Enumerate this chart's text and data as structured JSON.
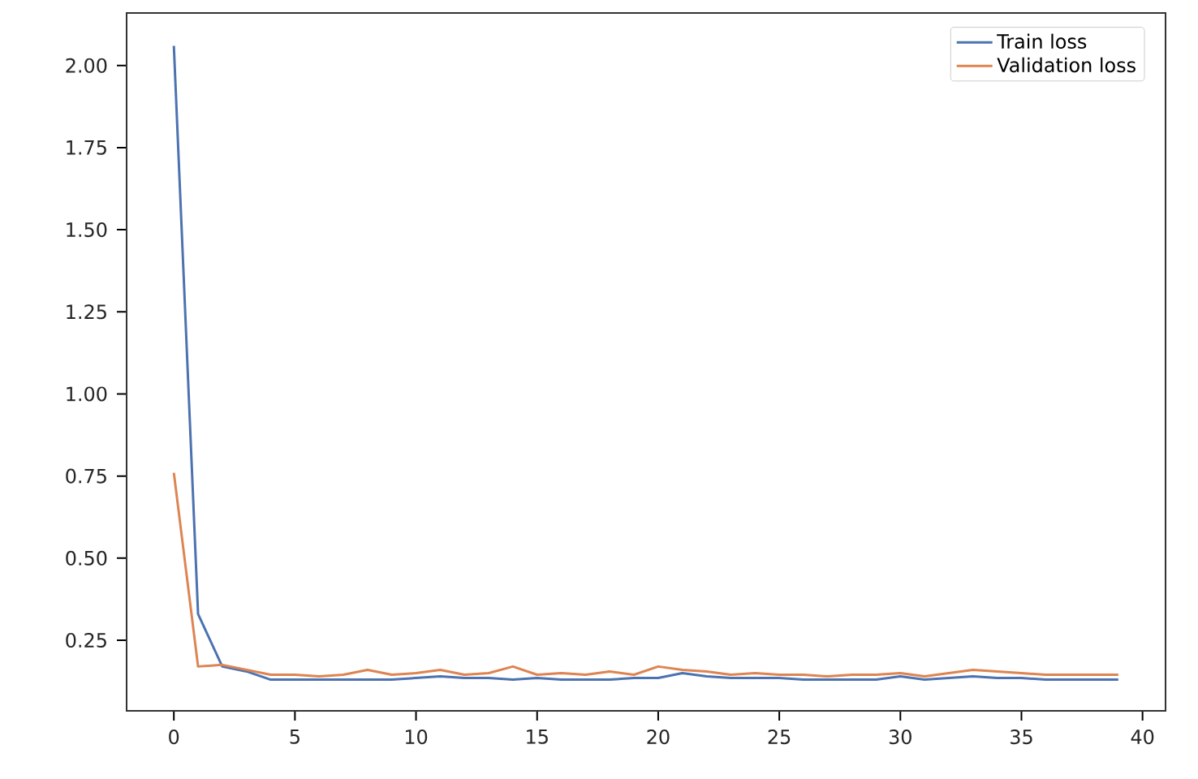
{
  "chart_data": {
    "type": "line",
    "x": [
      0,
      1,
      2,
      3,
      4,
      5,
      6,
      7,
      8,
      9,
      10,
      11,
      12,
      13,
      14,
      15,
      16,
      17,
      18,
      19,
      20,
      21,
      22,
      23,
      24,
      25,
      26,
      27,
      28,
      29,
      30,
      31,
      32,
      33,
      34,
      35,
      36,
      37,
      38,
      39
    ],
    "series": [
      {
        "name": "Train loss",
        "color": "#4c72b0",
        "values": [
          2.06,
          0.33,
          0.17,
          0.155,
          0.13,
          0.13,
          0.13,
          0.13,
          0.13,
          0.13,
          0.135,
          0.14,
          0.135,
          0.135,
          0.13,
          0.135,
          0.13,
          0.13,
          0.13,
          0.135,
          0.135,
          0.15,
          0.14,
          0.135,
          0.135,
          0.135,
          0.13,
          0.13,
          0.13,
          0.13,
          0.14,
          0.13,
          0.135,
          0.14,
          0.135,
          0.135,
          0.13,
          0.13,
          0.13,
          0.13
        ]
      },
      {
        "name": "Validation loss",
        "color": "#dd8452",
        "values": [
          0.76,
          0.17,
          0.175,
          0.16,
          0.145,
          0.145,
          0.14,
          0.145,
          0.16,
          0.145,
          0.15,
          0.16,
          0.145,
          0.15,
          0.17,
          0.145,
          0.15,
          0.145,
          0.155,
          0.145,
          0.17,
          0.16,
          0.155,
          0.145,
          0.15,
          0.145,
          0.145,
          0.14,
          0.145,
          0.145,
          0.15,
          0.14,
          0.15,
          0.16,
          0.155,
          0.15,
          0.145,
          0.145,
          0.145,
          0.145
        ]
      }
    ],
    "xlim": [
      -1.95,
      40.95
    ],
    "ylim": [
      0.035,
      2.16
    ],
    "xticks": [
      0,
      5,
      10,
      15,
      20,
      25,
      30,
      35,
      40
    ],
    "yticks": [
      {
        "value": 0.25,
        "label": "0.25"
      },
      {
        "value": 0.5,
        "label": "0.50"
      },
      {
        "value": 0.75,
        "label": "0.75"
      },
      {
        "value": 1.0,
        "label": "1.00"
      },
      {
        "value": 1.25,
        "label": "1.25"
      },
      {
        "value": 1.5,
        "label": "1.50"
      },
      {
        "value": 1.75,
        "label": "1.75"
      },
      {
        "value": 2.0,
        "label": "2.00"
      }
    ],
    "legend": "top right",
    "grid": false,
    "marker": "none",
    "line_style": "solid"
  }
}
